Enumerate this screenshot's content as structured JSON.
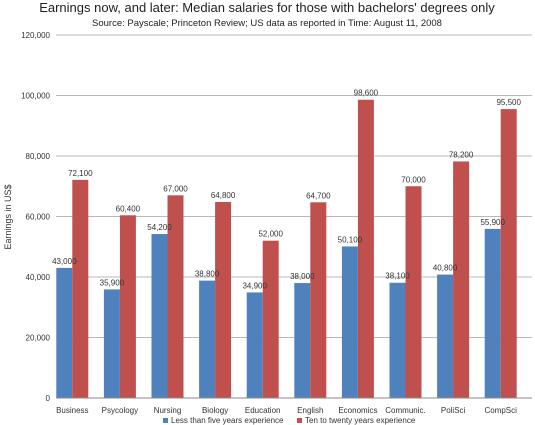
{
  "chart_data": {
    "type": "bar",
    "title": "Earnings now, and later: Median salaries for those with bachelors' degrees only",
    "subtitle": "Source: Payscale; Princeton Review; US data as reported in Time: August 11, 2008",
    "ylabel": "Earnings in US$",
    "xlabel": "",
    "ylim": [
      0,
      120000
    ],
    "yticks": [
      0,
      20000,
      40000,
      60000,
      80000,
      100000,
      120000
    ],
    "ytick_labels": [
      "0",
      "20,000",
      "40,000",
      "60,000",
      "80,000",
      "100,000",
      "120,000"
    ],
    "grid": true,
    "legend_position": "bottom",
    "categories": [
      "Business",
      "Psycology",
      "Nursing",
      "Biology",
      "Education",
      "English",
      "Economics",
      "Communic.",
      "PoliSci",
      "CompSci"
    ],
    "series": [
      {
        "name": "Less than five years experience",
        "color": "#4f81bd",
        "values": [
          43000,
          35900,
          54200,
          38800,
          34900,
          38000,
          50100,
          38100,
          40800,
          55900
        ],
        "labels": [
          "43,000",
          "35,900",
          "54,200",
          "38,800",
          "34,900",
          "38,000",
          "50,100",
          "38,100",
          "40,800",
          "55,900"
        ]
      },
      {
        "name": "Ten to twenty years experience",
        "color": "#c0504d",
        "values": [
          72100,
          60400,
          67000,
          64800,
          52000,
          64700,
          98600,
          70000,
          78200,
          95500
        ],
        "labels": [
          "72,100",
          "60,400",
          "67,000",
          "64,800",
          "52,000",
          "64,700",
          "98,600",
          "70,000",
          "78,200",
          "95,500"
        ]
      }
    ]
  }
}
